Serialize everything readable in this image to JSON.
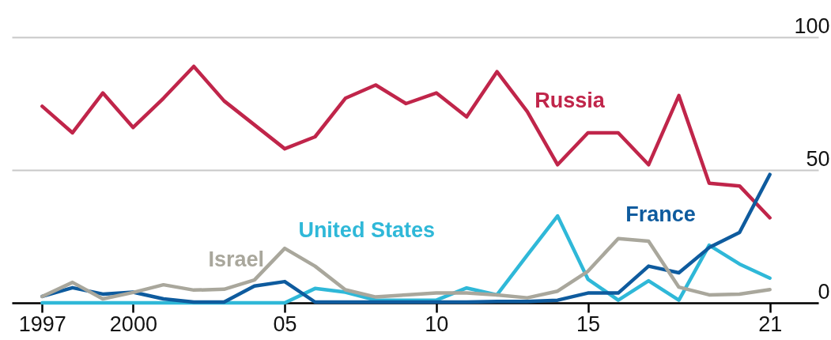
{
  "chart_data": {
    "type": "line",
    "x": [
      1997,
      1998,
      1999,
      2000,
      2001,
      2002,
      2003,
      2004,
      2005,
      2006,
      2007,
      2008,
      2009,
      2010,
      2011,
      2012,
      2013,
      2014,
      2015,
      2016,
      2017,
      2018,
      2019,
      2020,
      2021
    ],
    "series": [
      {
        "name": "Russia",
        "color": "#c0254a",
        "values": [
          74,
          64,
          79,
          66,
          77,
          89,
          76,
          67,
          58,
          62.5,
          77,
          82,
          75,
          79,
          70,
          87,
          72,
          52,
          64,
          64,
          52,
          78,
          45,
          44,
          32
        ]
      },
      {
        "name": "United States",
        "color": "#2fb8d8",
        "values": [
          0,
          0,
          0,
          0,
          0,
          0,
          0,
          0,
          0,
          5.4,
          4,
          1,
          1,
          1,
          5.6,
          3,
          18,
          32.7,
          8.9,
          1,
          8.3,
          1,
          21.7,
          14.6,
          9.3
        ]
      },
      {
        "name": "France",
        "color": "#0e5b9e",
        "values": [
          2.4,
          5.7,
          3.3,
          4,
          1.5,
          0.3,
          0.3,
          6.3,
          8,
          0.3,
          0.3,
          0.3,
          0.3,
          0.3,
          0.3,
          0.5,
          0.5,
          1,
          3.7,
          3.7,
          13.8,
          11.3,
          20.8,
          26.5,
          48.3
        ]
      },
      {
        "name": "Israel",
        "color": "#a9a79c",
        "values": [
          2.4,
          7.7,
          1.5,
          3.9,
          6.8,
          4.8,
          5.1,
          8.6,
          20.5,
          13.8,
          4.9,
          2.2,
          3,
          3.7,
          3.7,
          3,
          1.9,
          4.4,
          11.9,
          24.2,
          23.2,
          5.9,
          3,
          3.3,
          5
        ]
      }
    ],
    "xlim": [
      1996,
      2022.6
    ],
    "xticks": [
      1997,
      2000,
      {
        "value": 2005,
        "label": "05"
      },
      {
        "value": 2010,
        "label": "10"
      },
      {
        "value": 2015,
        "label": "15"
      },
      {
        "value": 2021,
        "label": "21"
      }
    ],
    "ylim": [
      0,
      100
    ],
    "yticks": [
      0,
      50,
      100
    ],
    "grid": "y",
    "legend": false,
    "marker": "none",
    "line_style": "solid"
  }
}
